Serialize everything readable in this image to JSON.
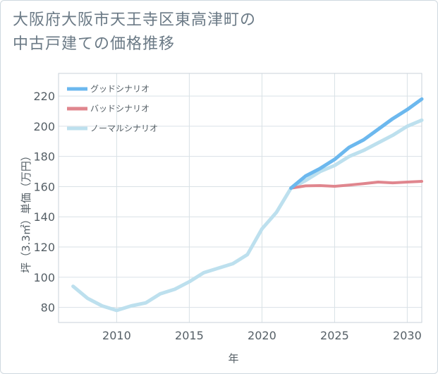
{
  "title_lines": [
    "大阪府大阪市天王寺区東高津町の",
    "中古戸建ての価格推移"
  ],
  "chart_data": {
    "type": "line",
    "title": "大阪府大阪市天王寺区東高津町の中古戸建ての価格推移",
    "xlabel": "年",
    "ylabel": "坪（3.3㎡）単価（万円）",
    "xlim": [
      2006,
      2031
    ],
    "ylim": [
      70,
      235
    ],
    "xticks": [
      2010,
      2015,
      2020,
      2025,
      2030
    ],
    "yticks": [
      80,
      100,
      120,
      140,
      160,
      180,
      200,
      220
    ],
    "legend_position": "top-left",
    "series": [
      {
        "name": "グッドシナリオ",
        "color": "#6cb8ee",
        "x": [
          2022,
          2023,
          2024,
          2025,
          2026,
          2027,
          2028,
          2029,
          2030,
          2031
        ],
        "values": [
          159,
          167,
          172,
          178,
          186,
          191,
          198,
          205,
          211,
          218
        ]
      },
      {
        "name": "バッドシナリオ",
        "color": "#e0868e",
        "x": [
          2022,
          2023,
          2024,
          2025,
          2026,
          2027,
          2028,
          2029,
          2030,
          2031
        ],
        "values": [
          159,
          160.5,
          160.7,
          160.2,
          161,
          162,
          163,
          162.5,
          163,
          163.5
        ]
      },
      {
        "name": "ノーマルシナリオ",
        "color": "#bde0ee",
        "x": [
          2007,
          2008,
          2009,
          2010,
          2011,
          2012,
          2013,
          2014,
          2015,
          2016,
          2017,
          2018,
          2019,
          2020,
          2021,
          2022,
          2023,
          2024,
          2025,
          2026,
          2027,
          2028,
          2029,
          2030,
          2031
        ],
        "values": [
          94,
          86,
          81,
          78,
          81,
          83,
          89,
          92,
          97,
          103,
          106,
          109,
          115,
          132,
          143,
          159,
          164,
          170,
          174,
          180,
          184,
          189,
          194,
          200,
          204
        ]
      }
    ]
  }
}
